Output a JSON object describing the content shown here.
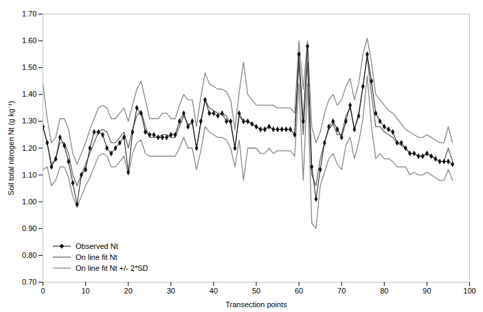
{
  "chart_data": {
    "type": "line",
    "xlabel": "Transection points",
    "ylabel": "Soil total nitrogen Nt (g kg⁻¹)",
    "xlim": [
      0,
      100
    ],
    "ylim": [
      0.7,
      1.7
    ],
    "xticks": [
      0,
      10,
      20,
      30,
      40,
      50,
      60,
      70,
      80,
      90,
      100
    ],
    "yticks": [
      {
        "value": 0.7,
        "label": "0.70"
      },
      {
        "value": 0.8,
        "label": "0.80"
      },
      {
        "value": 0.9,
        "label": "0.90"
      },
      {
        "value": 1.0,
        "label": "1.00"
      },
      {
        "value": 1.1,
        "label": "1.10"
      },
      {
        "value": 1.2,
        "label": "1.20"
      },
      {
        "value": 1.3,
        "label": "1.30"
      },
      {
        "value": 1.4,
        "label": "1.40"
      },
      {
        "value": 1.5,
        "label": "1.50"
      },
      {
        "value": 1.6,
        "label": "1.60"
      },
      {
        "value": 1.7,
        "label": "1.70"
      }
    ],
    "grid": false,
    "legend": "lower left",
    "x": [
      0,
      1,
      2,
      3,
      4,
      5,
      6,
      7,
      8,
      9,
      10,
      11,
      12,
      13,
      14,
      15,
      16,
      17,
      18,
      19,
      20,
      21,
      22,
      23,
      24,
      25,
      26,
      27,
      28,
      29,
      30,
      31,
      32,
      33,
      34,
      35,
      36,
      37,
      38,
      39,
      40,
      41,
      42,
      43,
      44,
      45,
      46,
      47,
      48,
      49,
      50,
      51,
      52,
      53,
      54,
      55,
      56,
      57,
      58,
      59,
      60,
      61,
      62,
      63,
      64,
      65,
      66,
      67,
      68,
      69,
      70,
      71,
      72,
      73,
      74,
      75,
      76,
      77,
      78,
      79,
      80,
      81,
      82,
      83,
      84,
      85,
      86,
      87,
      88,
      89,
      90,
      91,
      92,
      93,
      94,
      95,
      96
    ],
    "series": [
      {
        "name": "Observed Nt",
        "color": "#111111",
        "marker": "diamond",
        "line_style": "solid",
        "values": [
          1.28,
          1.22,
          1.13,
          1.16,
          1.24,
          1.21,
          1.15,
          1.07,
          0.99,
          1.1,
          1.12,
          1.2,
          1.26,
          1.26,
          1.25,
          1.2,
          1.18,
          1.2,
          1.22,
          1.24,
          1.11,
          1.26,
          1.35,
          1.33,
          1.26,
          1.25,
          1.25,
          1.24,
          1.24,
          1.24,
          1.25,
          1.25,
          1.3,
          1.33,
          1.28,
          1.3,
          1.2,
          1.3,
          1.38,
          1.33,
          1.33,
          1.32,
          1.33,
          1.3,
          1.3,
          1.2,
          1.33,
          1.3,
          1.3,
          1.29,
          1.28,
          1.27,
          1.27,
          1.28,
          1.27,
          1.27,
          1.27,
          1.27,
          1.27,
          1.25,
          1.55,
          1.3,
          1.58,
          1.13,
          1.01,
          1.12,
          1.22,
          1.28,
          1.3,
          1.27,
          1.24,
          1.3,
          1.36,
          1.27,
          1.32,
          1.43,
          1.55,
          1.45,
          1.33,
          1.3,
          1.28,
          1.27,
          1.26,
          1.22,
          1.22,
          1.2,
          1.18,
          1.18,
          1.17,
          1.17,
          1.18,
          1.17,
          1.16,
          1.15,
          1.15,
          1.15,
          1.14
        ]
      },
      {
        "name": "On line fit Nt",
        "color": "#666666",
        "line_style": "solid",
        "values": [
          1.28,
          1.22,
          1.14,
          1.16,
          1.22,
          1.22,
          1.18,
          1.1,
          1.06,
          1.1,
          1.14,
          1.18,
          1.22,
          1.26,
          1.27,
          1.26,
          1.22,
          1.22,
          1.24,
          1.26,
          1.2,
          1.27,
          1.32,
          1.34,
          1.28,
          1.24,
          1.24,
          1.24,
          1.25,
          1.25,
          1.24,
          1.24,
          1.28,
          1.32,
          1.29,
          1.29,
          1.2,
          1.29,
          1.38,
          1.35,
          1.34,
          1.33,
          1.33,
          1.32,
          1.29,
          1.2,
          1.32,
          1.3,
          1.3,
          1.29,
          1.28,
          1.27,
          1.27,
          1.28,
          1.27,
          1.27,
          1.27,
          1.27,
          1.27,
          1.25,
          1.52,
          1.25,
          1.52,
          1.1,
          1.06,
          1.16,
          1.22,
          1.27,
          1.29,
          1.25,
          1.25,
          1.32,
          1.35,
          1.27,
          1.33,
          1.43,
          1.54,
          1.4,
          1.28,
          1.28,
          1.26,
          1.25,
          1.24,
          1.22,
          1.21,
          1.2,
          1.18,
          1.18,
          1.17,
          1.17,
          1.18,
          1.17,
          1.16,
          1.15,
          1.15,
          1.2,
          1.15
        ]
      },
      {
        "name": "On line fit Nt +/- 2*SD",
        "color": "#888888",
        "line_style": "solid",
        "values": [
          1.44,
          1.31,
          1.22,
          1.24,
          1.31,
          1.31,
          1.27,
          1.18,
          1.14,
          1.18,
          1.22,
          1.27,
          1.31,
          1.35,
          1.36,
          1.35,
          1.31,
          1.31,
          1.33,
          1.35,
          1.3,
          1.36,
          1.42,
          1.45,
          1.38,
          1.31,
          1.31,
          1.31,
          1.33,
          1.33,
          1.31,
          1.31,
          1.36,
          1.4,
          1.38,
          1.38,
          1.28,
          1.39,
          1.48,
          1.44,
          1.43,
          1.42,
          1.42,
          1.41,
          1.38,
          1.27,
          1.41,
          1.52,
          1.4,
          1.38,
          1.36,
          1.36,
          1.36,
          1.36,
          1.36,
          1.35,
          1.35,
          1.35,
          1.35,
          1.33,
          1.6,
          1.42,
          1.6,
          1.28,
          1.22,
          1.26,
          1.33,
          1.38,
          1.4,
          1.36,
          1.38,
          1.43,
          1.46,
          1.38,
          1.44,
          1.55,
          1.61,
          1.52,
          1.4,
          1.38,
          1.36,
          1.34,
          1.33,
          1.31,
          1.29,
          1.27,
          1.26,
          1.25,
          1.24,
          1.24,
          1.25,
          1.24,
          1.23,
          1.22,
          1.22,
          1.28,
          1.22
        ]
      },
      {
        "name": "On line fit Nt +/- 2*SD",
        "color": "#888888",
        "line_style": "solid",
        "values": [
          1.12,
          1.13,
          1.06,
          1.08,
          1.13,
          1.13,
          1.09,
          1.02,
          0.98,
          1.02,
          1.06,
          1.09,
          1.13,
          1.17,
          1.18,
          1.17,
          1.13,
          1.13,
          1.15,
          1.17,
          1.1,
          1.18,
          1.22,
          1.23,
          1.18,
          1.17,
          1.17,
          1.17,
          1.17,
          1.17,
          1.17,
          1.17,
          1.2,
          1.24,
          1.2,
          1.2,
          1.12,
          1.19,
          1.28,
          1.26,
          1.25,
          1.24,
          1.24,
          1.23,
          1.2,
          1.13,
          1.23,
          1.08,
          1.2,
          1.2,
          1.2,
          1.18,
          1.18,
          1.2,
          1.18,
          1.19,
          1.19,
          1.19,
          1.19,
          1.17,
          1.44,
          1.08,
          1.44,
          0.92,
          0.9,
          1.06,
          1.11,
          1.16,
          1.18,
          1.14,
          1.12,
          1.21,
          1.24,
          1.16,
          1.22,
          1.31,
          1.47,
          1.28,
          1.16,
          1.18,
          1.16,
          1.16,
          1.15,
          1.13,
          1.13,
          1.13,
          1.1,
          1.11,
          1.1,
          1.1,
          1.11,
          1.1,
          1.09,
          1.08,
          1.08,
          1.12,
          1.08
        ]
      }
    ]
  }
}
